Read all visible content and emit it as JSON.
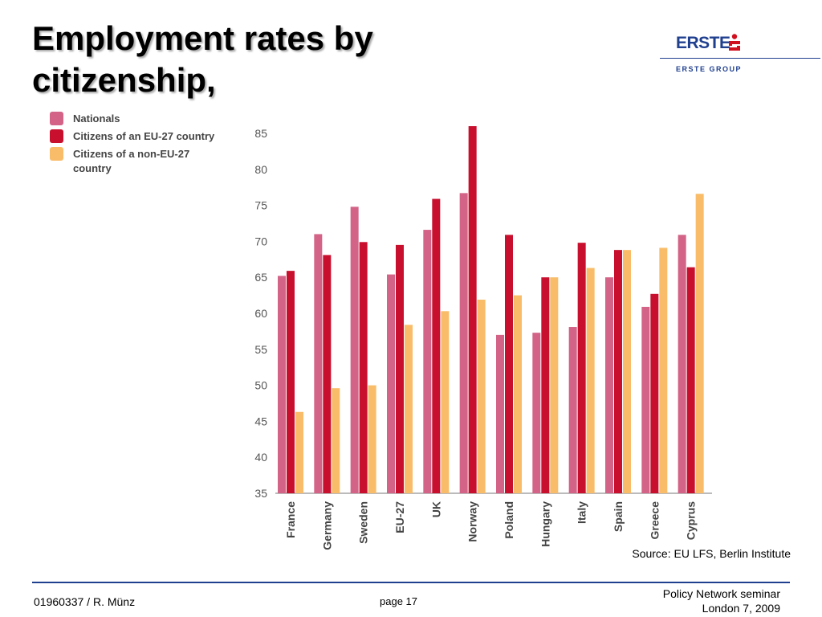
{
  "slide": {
    "title_line1": "Employment rates by",
    "title_line2": "citizenship,",
    "source": "Source: EU LFS, Berlin Institute"
  },
  "logo": {
    "wordmark": "ERSTE",
    "subtitle": "ERSTE GROUP",
    "brand_color": "#1f3f8f",
    "mark_color": "#d0101e"
  },
  "footer": {
    "left": "01960337 / R. Münz",
    "center": "page 17",
    "right_line1": "Policy Network seminar",
    "right_line2": "London 7, 2009"
  },
  "chart_data": {
    "type": "bar",
    "title": "",
    "xlabel": "",
    "ylabel": "",
    "ylim": [
      35,
      85
    ],
    "yticks": [
      35,
      40,
      45,
      50,
      55,
      60,
      65,
      70,
      75,
      80,
      85
    ],
    "grid": false,
    "legend_position": "top-left",
    "categories": [
      "France",
      "Germany",
      "Sweden",
      "EU-27",
      "UK",
      "Norway",
      "Poland",
      "Hungary",
      "Italy",
      "Spain",
      "Greece",
      "Cyprus"
    ],
    "series": [
      {
        "name": "Nationals",
        "color": "#d36387",
        "values": [
          65.2,
          71.0,
          74.8,
          65.4,
          71.6,
          76.7,
          57.0,
          57.3,
          58.1,
          65.0,
          60.9,
          70.9
        ]
      },
      {
        "name": "Citizens of an EU-27 country",
        "color": "#c8102e",
        "values": [
          65.9,
          68.1,
          69.9,
          69.5,
          75.9,
          86.0,
          70.9,
          65.0,
          69.8,
          68.8,
          62.7,
          66.4
        ]
      },
      {
        "name": "Citizens of a non-EU-27 country",
        "color": "#f9bd6a",
        "values": [
          46.3,
          49.6,
          50.0,
          58.4,
          60.3,
          61.9,
          62.5,
          65.0,
          66.3,
          68.8,
          69.1,
          76.6
        ]
      }
    ]
  }
}
